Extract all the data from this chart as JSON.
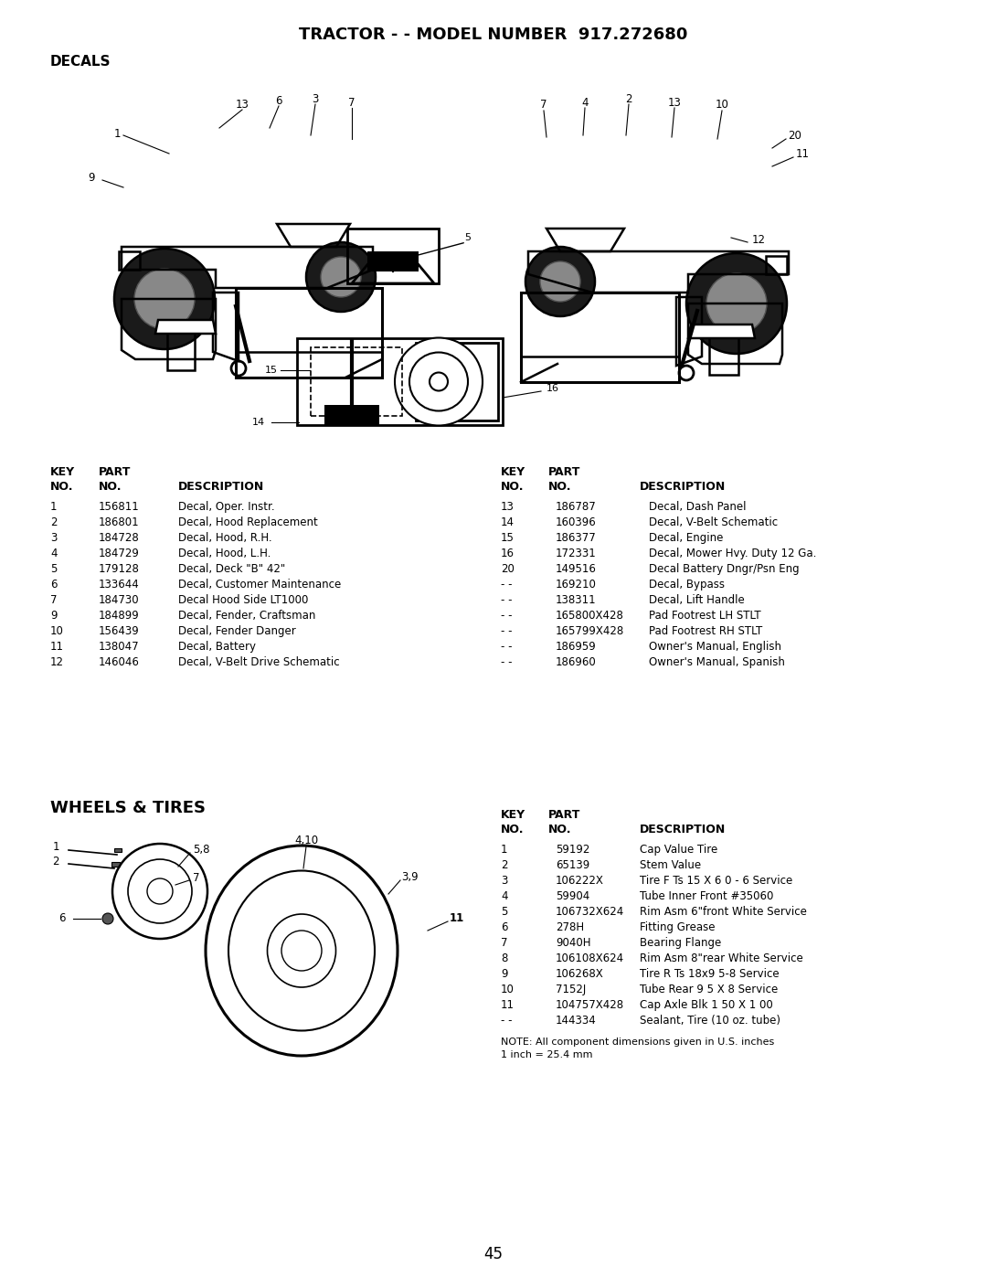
{
  "title": "TRACTOR - - MODEL NUMBER  917.272680",
  "section1": "DECALS",
  "section2": "WHEELS & TIRES",
  "bg_color": "#ffffff",
  "text_color": "#000000",
  "page_number": "45",
  "decals_table_left": [
    [
      "1",
      "156811",
      "Decal, Oper. Instr."
    ],
    [
      "2",
      "186801",
      "Decal, Hood Replacement"
    ],
    [
      "3",
      "184728",
      "Decal, Hood, R.H."
    ],
    [
      "4",
      "184729",
      "Decal, Hood, L.H."
    ],
    [
      "5",
      "179128",
      "Decal, Deck \"B\" 42\""
    ],
    [
      "6",
      "133644",
      "Decal, Customer Maintenance"
    ],
    [
      "7",
      "184730",
      "Decal Hood Side LT1000"
    ],
    [
      "9",
      "184899",
      "Decal, Fender, Craftsman"
    ],
    [
      "10",
      "156439",
      "Decal, Fender Danger"
    ],
    [
      "11",
      "138047",
      "Decal, Battery"
    ],
    [
      "12",
      "146046",
      "Decal, V-Belt Drive Schematic"
    ]
  ],
  "decals_table_right": [
    [
      "13",
      "186787",
      "Decal, Dash Panel"
    ],
    [
      "14",
      "160396",
      "Decal, V-Belt Schematic"
    ],
    [
      "15",
      "186377",
      "Decal, Engine"
    ],
    [
      "16",
      "172331",
      "Decal, Mower Hvy. Duty 12 Ga."
    ],
    [
      "20",
      "149516",
      "Decal Battery Dngr/Psn Eng"
    ],
    [
      "- -",
      "169210",
      "Decal, Bypass"
    ],
    [
      "- -",
      "138311",
      "Decal, Lift Handle"
    ],
    [
      "- -",
      "165800X428",
      "Pad Footrest LH STLT"
    ],
    [
      "- -",
      "165799X428",
      "Pad Footrest RH STLT"
    ],
    [
      "- -",
      "186959",
      "Owner's Manual, English"
    ],
    [
      "- -",
      "186960",
      "Owner's Manual, Spanish"
    ]
  ],
  "wheels_table": [
    [
      "1",
      "59192",
      "Cap Value Tire"
    ],
    [
      "2",
      "65139",
      "Stem Value"
    ],
    [
      "3",
      "106222X",
      "Tire F Ts 15 X 6 0 - 6 Service"
    ],
    [
      "4",
      "59904",
      "Tube Inner Front #35060"
    ],
    [
      "5",
      "106732X624",
      "Rim Asm 6\"front White Service"
    ],
    [
      "6",
      "278H",
      "Fitting Grease"
    ],
    [
      "7",
      "9040H",
      "Bearing Flange"
    ],
    [
      "8",
      "106108X624",
      "Rim Asm 8\"rear White Service"
    ],
    [
      "9",
      "106268X",
      "Tire R Ts 18x9 5-8 Service"
    ],
    [
      "10",
      "7152J",
      "Tube Rear 9 5 X 8 Service"
    ],
    [
      "11",
      "104757X428",
      "Cap Axle Blk 1 50 X 1 00"
    ],
    [
      "- -",
      "144334",
      "Sealant, Tire (10 oz. tube)"
    ]
  ],
  "note": "NOTE: All component dimensions given in U.S. inches\n1 inch = 25.4 mm"
}
